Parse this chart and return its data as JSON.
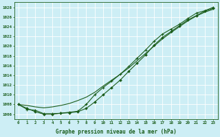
{
  "x": [
    0,
    1,
    2,
    3,
    4,
    5,
    6,
    7,
    8,
    9,
    10,
    11,
    12,
    13,
    14,
    15,
    16,
    17,
    18,
    19,
    20,
    21,
    22,
    23
  ],
  "line_smooth": [
    1008,
    1007.8,
    1007.5,
    1007.3,
    1007.5,
    1007.8,
    1008.2,
    1008.8,
    1009.5,
    1010.5,
    1011.8,
    1013.0,
    1014.2,
    1015.5,
    1017.0,
    1018.5,
    1020.0,
    1021.5,
    1022.8,
    1024.0,
    1025.2,
    1026.2,
    1027.0,
    1027.6
  ],
  "line_markers1": [
    1008,
    1007.2,
    1006.5,
    1006.0,
    1006.0,
    1006.2,
    1006.3,
    1006.5,
    1007.2,
    1008.5,
    1010.0,
    1011.5,
    1013.0,
    1014.8,
    1016.5,
    1018.2,
    1020.2,
    1021.8,
    1023.0,
    1024.2,
    1025.4,
    1026.3,
    1027.2,
    1027.8
  ],
  "line_markers2": [
    1008,
    1007.0,
    1006.8,
    1006.1,
    1006.1,
    1006.2,
    1006.4,
    1006.6,
    1008.0,
    1010.0,
    1011.5,
    1012.8,
    1014.2,
    1015.8,
    1017.5,
    1019.2,
    1021.0,
    1022.5,
    1023.5,
    1024.5,
    1025.7,
    1026.8,
    1027.3,
    1028.0
  ],
  "ylim": [
    1005,
    1029
  ],
  "yticks": [
    1006,
    1008,
    1010,
    1012,
    1014,
    1016,
    1018,
    1020,
    1022,
    1024,
    1026,
    1028
  ],
  "xlabel": "Graphe pression niveau de la mer (hPa)",
  "bg_color": "#cdeef5",
  "grid_color": "#ffffff",
  "line_color": "#1a5c1a",
  "marker_color": "#1a5c1a"
}
